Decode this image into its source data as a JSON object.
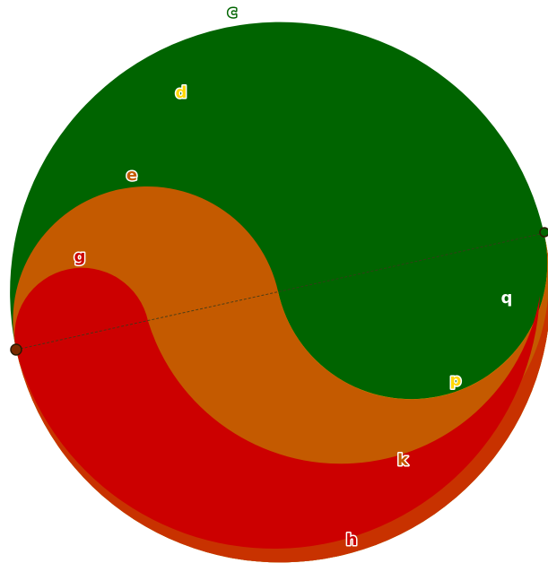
{
  "figure": {
    "colors": {
      "green": "#006400",
      "yellow": "#ffd700",
      "orange": "#c45a00",
      "red_orange": "#c83200",
      "red": "#cc0000",
      "endpoint": "#7a2a00",
      "label_green_fill": "#ffffff",
      "label_green_stroke": "#006400",
      "label_yellow_fill": "#ffd700",
      "label_yellow_stroke": "#ffffff",
      "label_orange_fill": "#c45a00",
      "label_orange_stroke": "#ffffff",
      "label_red_fill": "#cc0000",
      "label_red_stroke": "#ffffff"
    },
    "labels": {
      "c": "c",
      "d": "d",
      "e": "e",
      "g": "g",
      "q": "q",
      "p": "p",
      "k": "k",
      "h": "h"
    }
  }
}
